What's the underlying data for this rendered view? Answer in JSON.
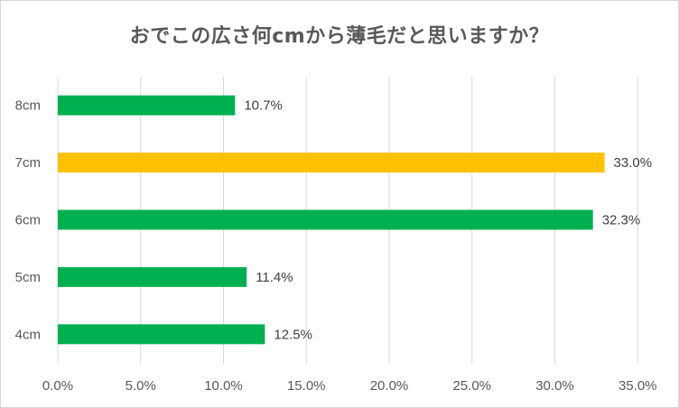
{
  "chart_data": {
    "type": "bar",
    "orientation": "horizontal",
    "title": "おでこの広さ何cmから薄毛だと思いますか？",
    "categories": [
      "8cm",
      "7cm",
      "6cm",
      "5cm",
      "4cm"
    ],
    "values": [
      10.7,
      33.0,
      32.3,
      11.4,
      12.5
    ],
    "data_labels": [
      "10.7%",
      "33.0%",
      "32.3%",
      "11.4%",
      "12.5%"
    ],
    "bar_colors": [
      "#00b050",
      "#ffc000",
      "#00b050",
      "#00b050",
      "#00b050"
    ],
    "x_ticks": [
      "0.0%",
      "5.0%",
      "10.0%",
      "15.0%",
      "20.0%",
      "25.0%",
      "30.0%",
      "35.0%"
    ],
    "xlim": [
      0,
      35
    ],
    "xlabel": "",
    "ylabel": "",
    "grid": true,
    "legend": "none"
  }
}
